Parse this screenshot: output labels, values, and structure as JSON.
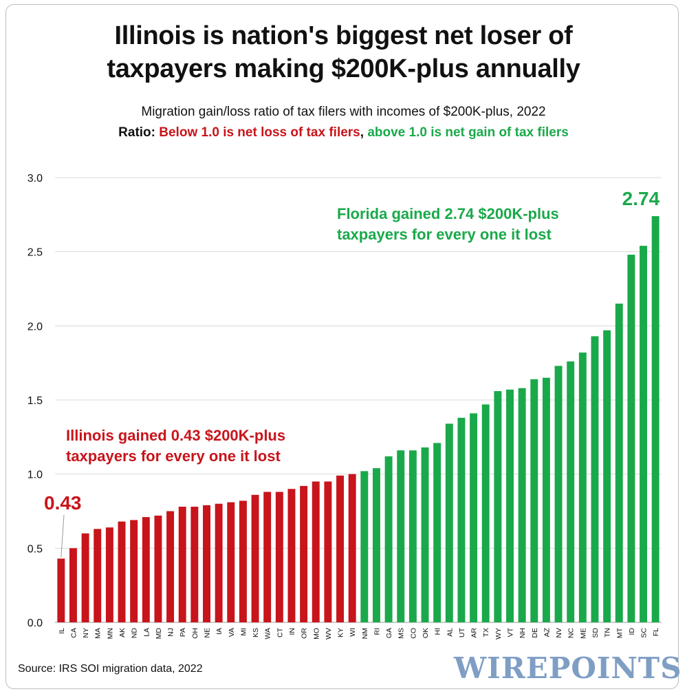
{
  "title_lines": [
    "Illinois is nation's biggest net loser of",
    "taxpayers making $200K-plus annually"
  ],
  "subtitle": "Migration gain/loss ratio of tax filers with incomes of $200K-plus, 2022",
  "ratio_line": {
    "label": "Ratio: ",
    "loss_text": "Below 1.0 is net loss of tax filers",
    "separator": ", ",
    "gain_text": "above 1.0 is net gain of tax filers"
  },
  "source": "Source: IRS SOI migration data, 2022",
  "brand": "WIREPOINTS",
  "colors": {
    "loss": "#c8141b",
    "gain": "#1aa94a",
    "grid": "#d9d9d9",
    "axis_text": "#111111"
  },
  "chart_data": {
    "type": "bar",
    "title": "Illinois is nation's biggest net loser of taxpayers making $200K-plus annually",
    "xlabel": "",
    "ylabel": "",
    "ylim": [
      0,
      3.0
    ],
    "yticks": [
      "0.0",
      "0.5",
      "1.0",
      "1.5",
      "2.0",
      "2.5",
      "3.0"
    ],
    "threshold": 1.0,
    "categories": [
      "IL",
      "CA",
      "NY",
      "MA",
      "MN",
      "AK",
      "ND",
      "LA",
      "MD",
      "NJ",
      "PA",
      "OH",
      "NE",
      "IA",
      "VA",
      "MI",
      "KS",
      "WA",
      "CT",
      "IN",
      "OR",
      "MO",
      "WV",
      "KY",
      "WI",
      "NM",
      "RI",
      "GA",
      "MS",
      "CO",
      "OK",
      "HI",
      "AL",
      "UT",
      "AR",
      "TX",
      "WY",
      "VT",
      "NH",
      "DE",
      "AZ",
      "NV",
      "NC",
      "ME",
      "SD",
      "TN",
      "MT",
      "ID",
      "SC",
      "FL"
    ],
    "values": [
      0.43,
      0.5,
      0.6,
      0.63,
      0.64,
      0.68,
      0.69,
      0.71,
      0.72,
      0.75,
      0.78,
      0.78,
      0.79,
      0.8,
      0.81,
      0.82,
      0.86,
      0.88,
      0.88,
      0.9,
      0.92,
      0.95,
      0.95,
      0.99,
      1.0,
      1.02,
      1.04,
      1.12,
      1.16,
      1.16,
      1.18,
      1.21,
      1.34,
      1.38,
      1.41,
      1.47,
      1.56,
      1.57,
      1.58,
      1.64,
      1.65,
      1.73,
      1.76,
      1.82,
      1.93,
      1.97,
      2.15,
      2.48,
      2.54,
      2.74
    ],
    "annotations": [
      {
        "name": "illinois",
        "value_label": "0.43",
        "lines": [
          "Illinois gained 0.43 $200K-plus",
          "taxpayers for every one it lost"
        ]
      },
      {
        "name": "florida",
        "value_label": "2.74",
        "lines": [
          "Florida gained 2.74 $200K-plus",
          "taxpayers for every one it lost"
        ]
      }
    ]
  }
}
